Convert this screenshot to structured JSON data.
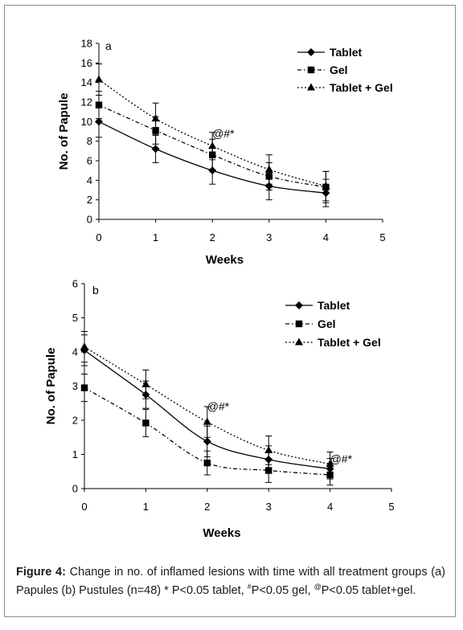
{
  "chart_data": [
    {
      "type": "line",
      "panel_label": "a",
      "xlabel": "Weeks",
      "ylabel": "No. of Papule",
      "x": [
        0,
        1,
        2,
        3,
        4
      ],
      "xlim": [
        0,
        5
      ],
      "ylim": [
        0,
        18
      ],
      "xticks": [
        0,
        1,
        2,
        3,
        4,
        5
      ],
      "yticks": [
        0,
        2,
        4,
        6,
        8,
        10,
        12,
        14,
        16,
        18
      ],
      "legend_position": "top-right",
      "series": [
        {
          "name": "Tablet",
          "marker": "diamond",
          "dash": "solid",
          "values": [
            10.0,
            7.2,
            5.0,
            3.4,
            2.7
          ],
          "errors": [
            1.6,
            1.4,
            1.4,
            1.4,
            1.4
          ]
        },
        {
          "name": "Gel",
          "marker": "square",
          "dash": "dashdot",
          "values": [
            11.7,
            9.1,
            6.6,
            4.4,
            3.3
          ],
          "errors": [
            1.4,
            1.4,
            1.6,
            1.4,
            1.6
          ]
        },
        {
          "name": "Tablet + Gel",
          "marker": "triangle",
          "dash": "dotted",
          "values": [
            14.3,
            10.3,
            7.5,
            5.1,
            3.4
          ],
          "errors": [
            1.6,
            1.6,
            1.4,
            1.5,
            1.5
          ]
        }
      ],
      "annotations": [
        {
          "x": 2,
          "y": 8.4,
          "text": "@#*"
        }
      ]
    },
    {
      "type": "line",
      "panel_label": "b",
      "xlabel": "Weeks",
      "ylabel": "No. of Papule",
      "x": [
        0,
        1,
        2,
        3,
        4
      ],
      "xlim": [
        0,
        5
      ],
      "ylim": [
        0,
        6
      ],
      "xticks": [
        0,
        1,
        2,
        3,
        4,
        5
      ],
      "yticks": [
        0,
        1,
        2,
        3,
        4,
        5,
        6
      ],
      "legend_position": "top-right",
      "series": [
        {
          "name": "Tablet",
          "marker": "diamond",
          "dash": "solid",
          "values": [
            4.05,
            2.75,
            1.38,
            0.85,
            0.58
          ],
          "errors": [
            0.45,
            0.4,
            0.45,
            0.4,
            0.3
          ]
        },
        {
          "name": "Gel",
          "marker": "square",
          "dash": "dashdot",
          "values": [
            2.95,
            1.92,
            0.75,
            0.53,
            0.4
          ],
          "errors": [
            0.4,
            0.4,
            0.35,
            0.35,
            0.3
          ]
        },
        {
          "name": "Tablet + Gel",
          "marker": "triangle",
          "dash": "dotted",
          "values": [
            4.15,
            3.05,
            1.95,
            1.12,
            0.72
          ],
          "errors": [
            0.45,
            0.42,
            0.45,
            0.42,
            0.35
          ]
        }
      ],
      "annotations": [
        {
          "x": 2,
          "y": 2.3,
          "text": "@#*"
        },
        {
          "x": 4,
          "y": 0.75,
          "text": "@#*"
        }
      ]
    }
  ],
  "caption": {
    "label": "Figure 4:",
    "text_1": " Change in no. of inflamed lesions with time with all treatment groups (a) Papules (b) Pustules (n=48) * P<0.05 tablet, ",
    "sup_1": "#",
    "text_2": "P<0.05 gel, ",
    "sup_2": "@",
    "text_3": "P<0.05 tablet+gel."
  }
}
